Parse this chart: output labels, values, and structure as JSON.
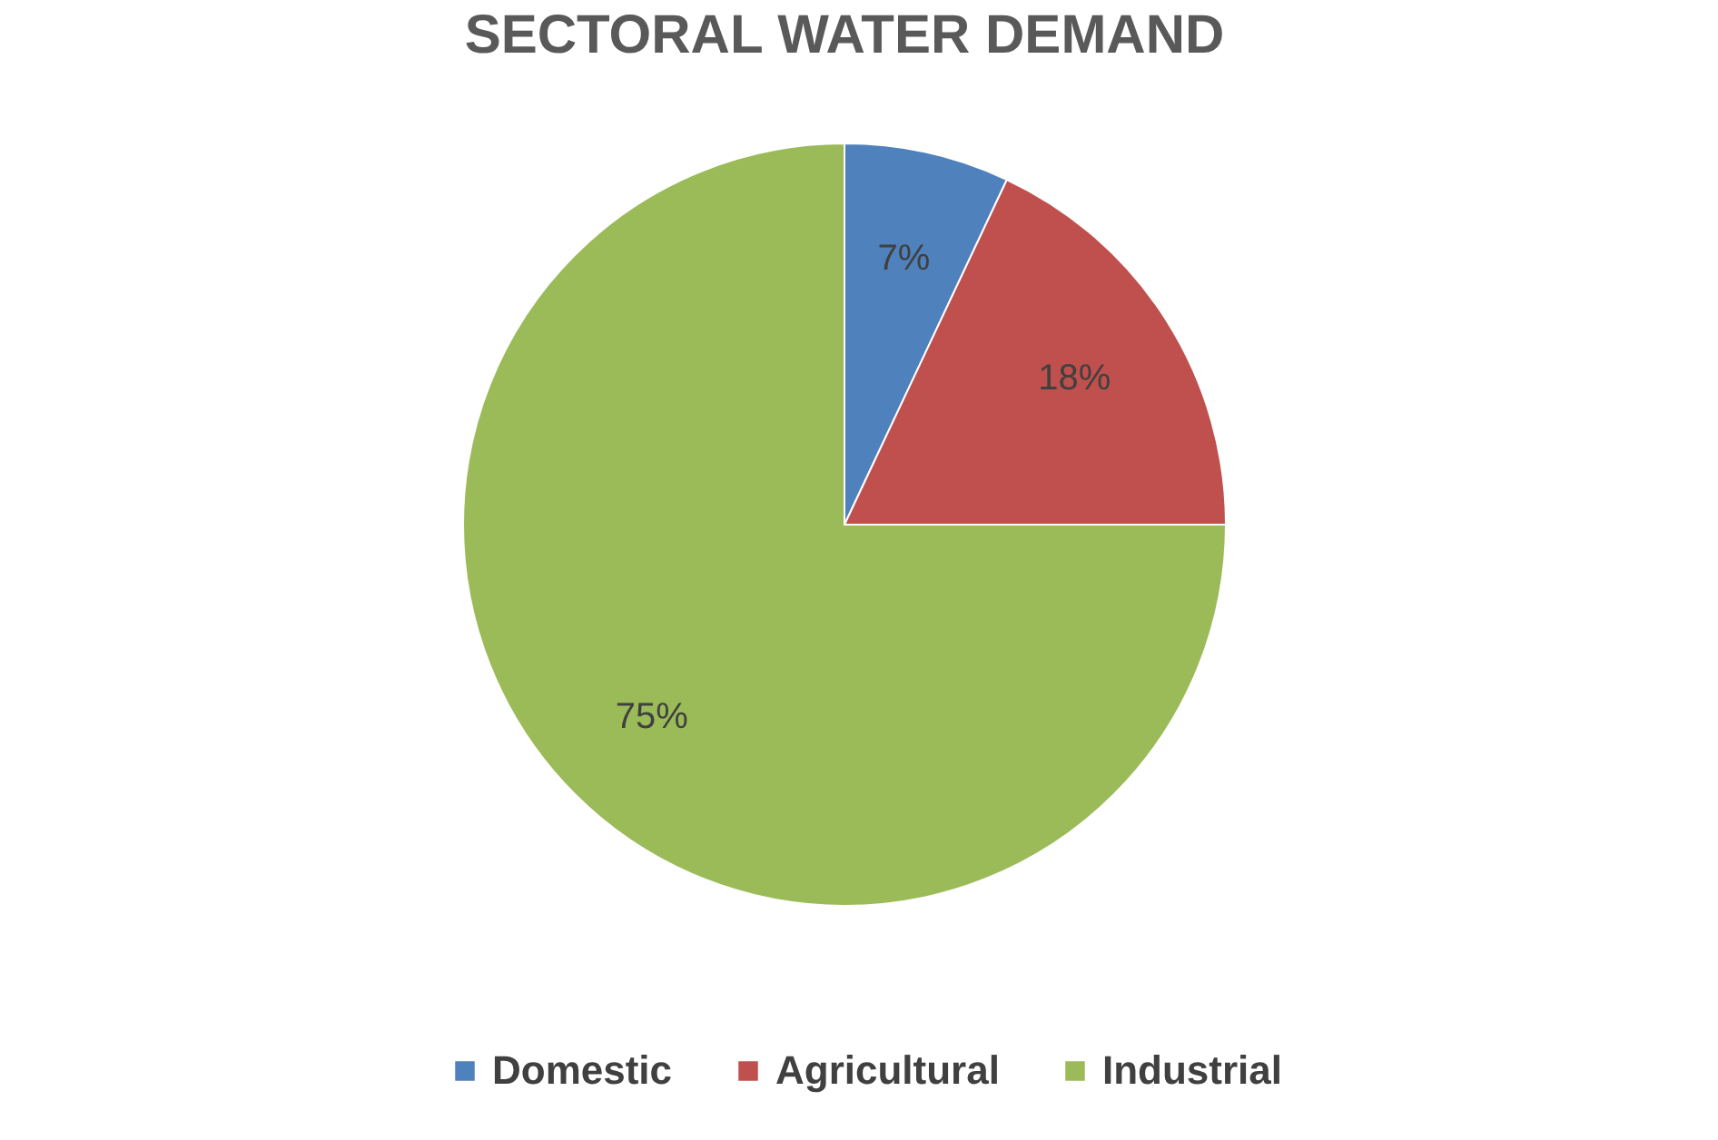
{
  "chart_data": {
    "type": "pie",
    "title": "SECTORAL WATER DEMAND",
    "categories": [
      "Domestic",
      "Agricultural",
      "Industrial"
    ],
    "values": [
      7,
      18,
      75
    ],
    "colors": [
      "#4f81bd",
      "#c0504d",
      "#9bbb59"
    ],
    "value_labels": [
      "7%",
      "18%",
      "75%"
    ],
    "legend": "bottom"
  }
}
